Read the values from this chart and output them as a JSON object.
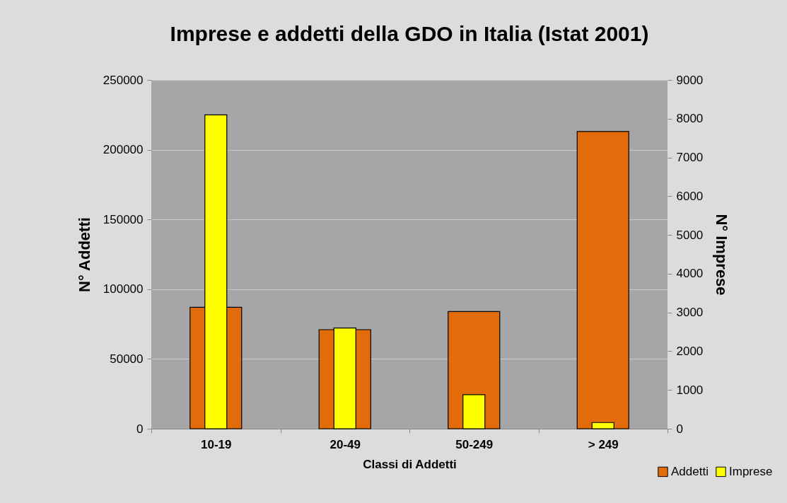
{
  "chart_data": {
    "type": "bar",
    "title": "Imprese e addetti della GDO in Italia (Istat 2001)",
    "xlabel": "Classi di Addetti",
    "ylabel": "N° Addetti",
    "y2label": "N° Imprese",
    "categories": [
      "10-19",
      "20-49",
      "50-249",
      "> 249"
    ],
    "series": [
      {
        "name": "Addetti",
        "color": "#e36c0a",
        "values": [
          87000,
          71000,
          84000,
          213000
        ]
      },
      {
        "name": "Imprese",
        "color": "#ffff00",
        "axis": "y2",
        "values": [
          8100,
          2600,
          880,
          160
        ]
      }
    ],
    "ylim": [
      0,
      250000
    ],
    "yticks": [
      0,
      50000,
      100000,
      150000,
      200000,
      250000
    ],
    "y2lim": [
      0,
      9000
    ],
    "y2ticks": [
      0,
      1000,
      2000,
      3000,
      4000,
      5000,
      6000,
      7000,
      8000,
      9000
    ],
    "grid": "y",
    "legend": "bottom right"
  }
}
